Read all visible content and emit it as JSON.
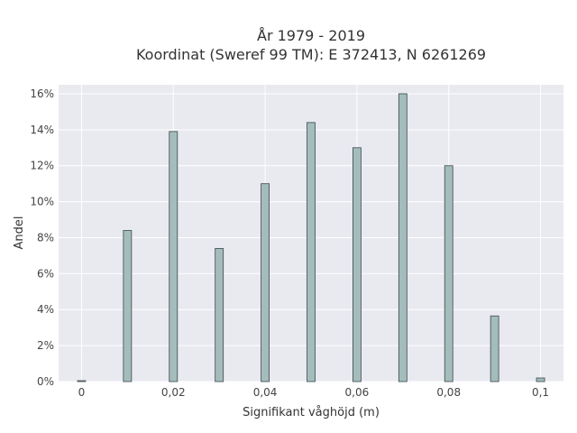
{
  "chart_data": {
    "type": "bar",
    "title_line1": "År 1979 - 2019",
    "title_line2": "Koordinat (Sweref 99 TM): E 372413, N 6261269",
    "xlabel": "Signifikant våghöjd (m)",
    "ylabel": "Andel",
    "x_ticks": [
      "0",
      "0,02",
      "0,04",
      "0,06",
      "0,08",
      "0,1"
    ],
    "y_ticks": [
      "0%",
      "2%",
      "4%",
      "6%",
      "8%",
      "10%",
      "12%",
      "14%",
      "16%"
    ],
    "xlim": [
      -0.005,
      0.105
    ],
    "ylim": [
      0,
      16.5
    ],
    "grid": true,
    "colors": {
      "bar": "#a4bcbc",
      "bar_edge": "#3a4a4a",
      "plot_bg": "#e9e9f0",
      "grid": "#ffffff"
    },
    "x": [
      0,
      0.01,
      0.02,
      0.03,
      0.04,
      0.05,
      0.06,
      0.07,
      0.08,
      0.09,
      0.1
    ],
    "values": [
      0.05,
      8.4,
      13.9,
      7.4,
      11.0,
      14.4,
      13.0,
      16.0,
      12.0,
      3.65,
      0.2
    ]
  }
}
